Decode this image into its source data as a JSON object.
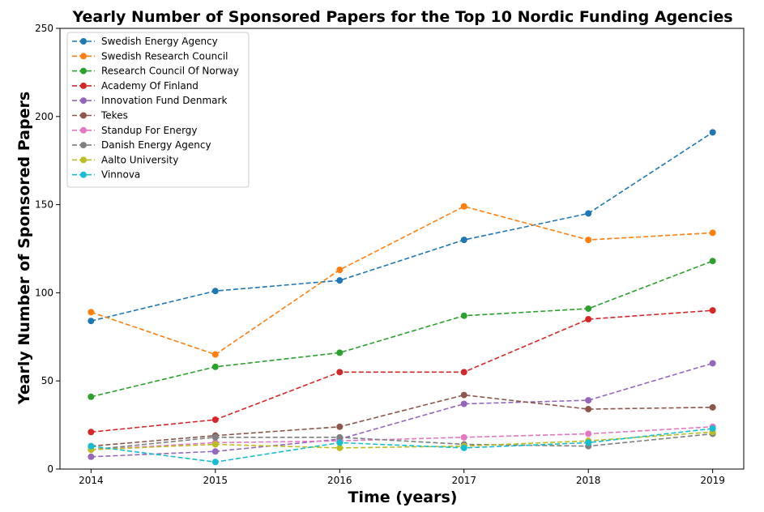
{
  "chart_data": {
    "type": "line",
    "title": "Yearly Number of Sponsored Papers for the Top 10 Nordic Funding Agencies",
    "xlabel": "Time (years)",
    "ylabel": "Yearly Number of Sponsored Papers",
    "x": [
      2014,
      2015,
      2016,
      2017,
      2018,
      2019
    ],
    "x_tick_labels": [
      "2014",
      "2015",
      "2016",
      "2017",
      "2018",
      "2019"
    ],
    "ylim": [
      0,
      250
    ],
    "y_ticks": [
      0,
      50,
      100,
      150,
      200,
      250
    ],
    "y_tick_labels": [
      "0",
      "50",
      "100",
      "150",
      "200",
      "250"
    ],
    "grid": false,
    "legend_position": "top-left",
    "line_style": "dashed",
    "marker": "circle",
    "series": [
      {
        "name": "Swedish Energy Agency",
        "color": "#1f77b4",
        "values": [
          84,
          101,
          107,
          130,
          145,
          191
        ]
      },
      {
        "name": "Swedish Research Council",
        "color": "#ff7f0e",
        "values": [
          89,
          65,
          113,
          149,
          130,
          134
        ]
      },
      {
        "name": "Research Council Of Norway",
        "color": "#2ca02c",
        "values": [
          41,
          58,
          66,
          87,
          91,
          118
        ]
      },
      {
        "name": "Academy Of Finland",
        "color": "#d62728",
        "values": [
          21,
          28,
          55,
          55,
          85,
          90
        ]
      },
      {
        "name": "Innovation Fund Denmark",
        "color": "#9467bd",
        "values": [
          7,
          10,
          17,
          37,
          39,
          60
        ]
      },
      {
        "name": "Tekes",
        "color": "#8c564b",
        "values": [
          13,
          19,
          24,
          42,
          34,
          35
        ]
      },
      {
        "name": "Standup For Energy",
        "color": "#e377c2",
        "values": [
          11,
          15,
          16,
          18,
          20,
          24
        ]
      },
      {
        "name": "Danish Energy Agency",
        "color": "#7f7f7f",
        "values": [
          11,
          18,
          18,
          14,
          13,
          20
        ]
      },
      {
        "name": "Aalto University",
        "color": "#bcbd22",
        "values": [
          11,
          14,
          12,
          13,
          16,
          21
        ]
      },
      {
        "name": "Vinnova",
        "color": "#17becf",
        "values": [
          13,
          4,
          15,
          12,
          15,
          23
        ]
      }
    ]
  }
}
